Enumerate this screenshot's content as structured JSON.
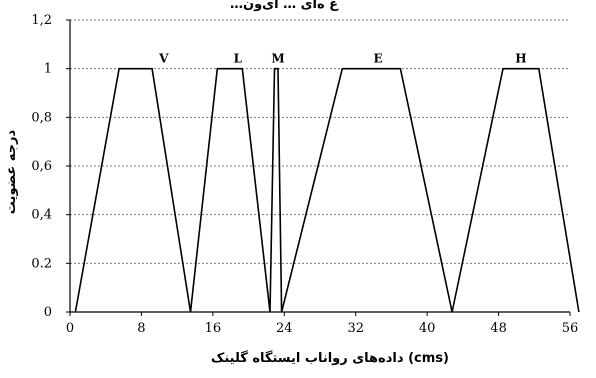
{
  "chart_data": {
    "type": "line",
    "title": "…ع‌ ه‌ای ‌‌… ‌ای‌ون‌",
    "xlabel": "داده‌های رواناب ایستگاه گلینک (cms)",
    "ylabel": "درجه عضویت",
    "xlim": [
      0,
      56
    ],
    "ylim": [
      0,
      1.2
    ],
    "x_ticks": [
      "0",
      "8",
      "16",
      "24",
      "32",
      "40",
      "48",
      "56"
    ],
    "x_tick_values": [
      0,
      8,
      16,
      24,
      32,
      40,
      48,
      56
    ],
    "y_ticks": [
      "0",
      "0.2",
      "0,4",
      "0,6",
      "0,8",
      "1",
      "1,2"
    ],
    "y_tick_values": [
      0,
      0.2,
      0.4,
      0.6,
      0.8,
      1,
      1.2
    ],
    "grid": "horizontal dashed",
    "series": [
      {
        "name": "V",
        "label_x": 10.5,
        "points": [
          [
            0.6,
            0
          ],
          [
            5.5,
            1
          ],
          [
            9.2,
            1
          ],
          [
            13.5,
            0
          ]
        ]
      },
      {
        "name": "L",
        "label_x": 18.8,
        "points": [
          [
            13.5,
            0
          ],
          [
            16.5,
            1
          ],
          [
            19.3,
            1
          ],
          [
            22.4,
            0
          ]
        ]
      },
      {
        "name": "M",
        "label_x": 23.3,
        "points": [
          [
            22.4,
            0
          ],
          [
            22.9,
            1
          ],
          [
            23.3,
            1
          ],
          [
            23.7,
            0
          ]
        ]
      },
      {
        "name": "E",
        "label_x": 34.5,
        "points": [
          [
            23.7,
            0
          ],
          [
            30.5,
            1
          ],
          [
            37.0,
            1
          ],
          [
            42.8,
            0
          ]
        ]
      },
      {
        "name": "H",
        "label_x": 50.5,
        "points": [
          [
            42.8,
            0
          ],
          [
            48.5,
            1
          ],
          [
            52.5,
            1
          ],
          [
            57.0,
            0
          ]
        ]
      }
    ]
  }
}
